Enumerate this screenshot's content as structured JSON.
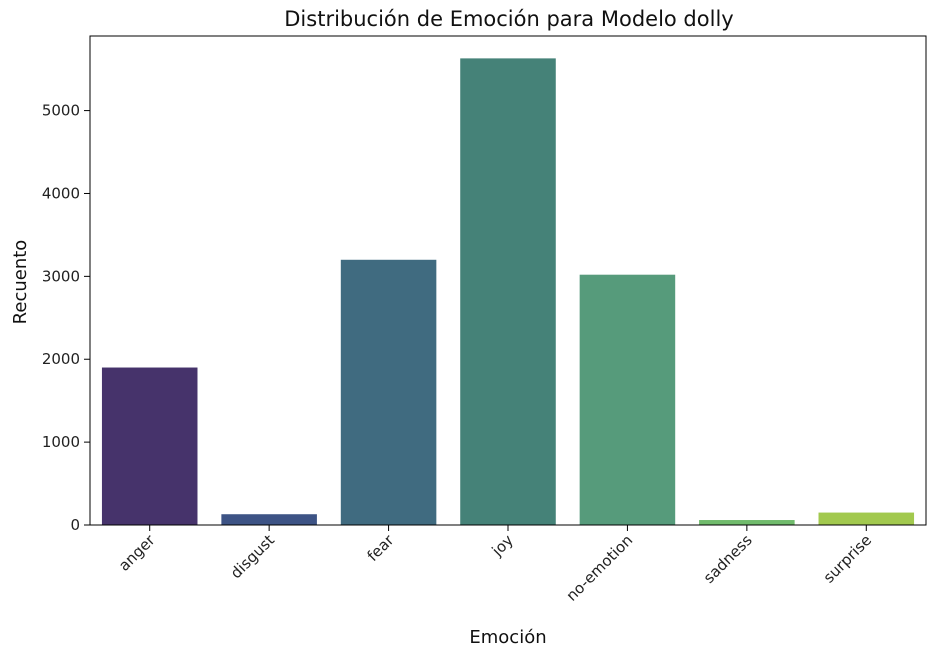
{
  "chart_data": {
    "type": "bar",
    "title": "Distribución de Emoción para Modelo dolly",
    "xlabel": "Emoción",
    "ylabel": "Recuento",
    "categories": [
      "anger",
      "disgust",
      "fear",
      "joy",
      "no-emotion",
      "sadness",
      "surprise"
    ],
    "values": [
      1900,
      130,
      3200,
      5630,
      3020,
      60,
      150
    ],
    "colors": [
      "#46336b",
      "#3d5385",
      "#406b80",
      "#458278",
      "#569b7b",
      "#70bb6c",
      "#a2c94e"
    ],
    "ylim": [
      0,
      5900
    ],
    "yticks": [
      0,
      1000,
      2000,
      3000,
      4000,
      5000
    ],
    "grid": false,
    "legend": "none"
  }
}
